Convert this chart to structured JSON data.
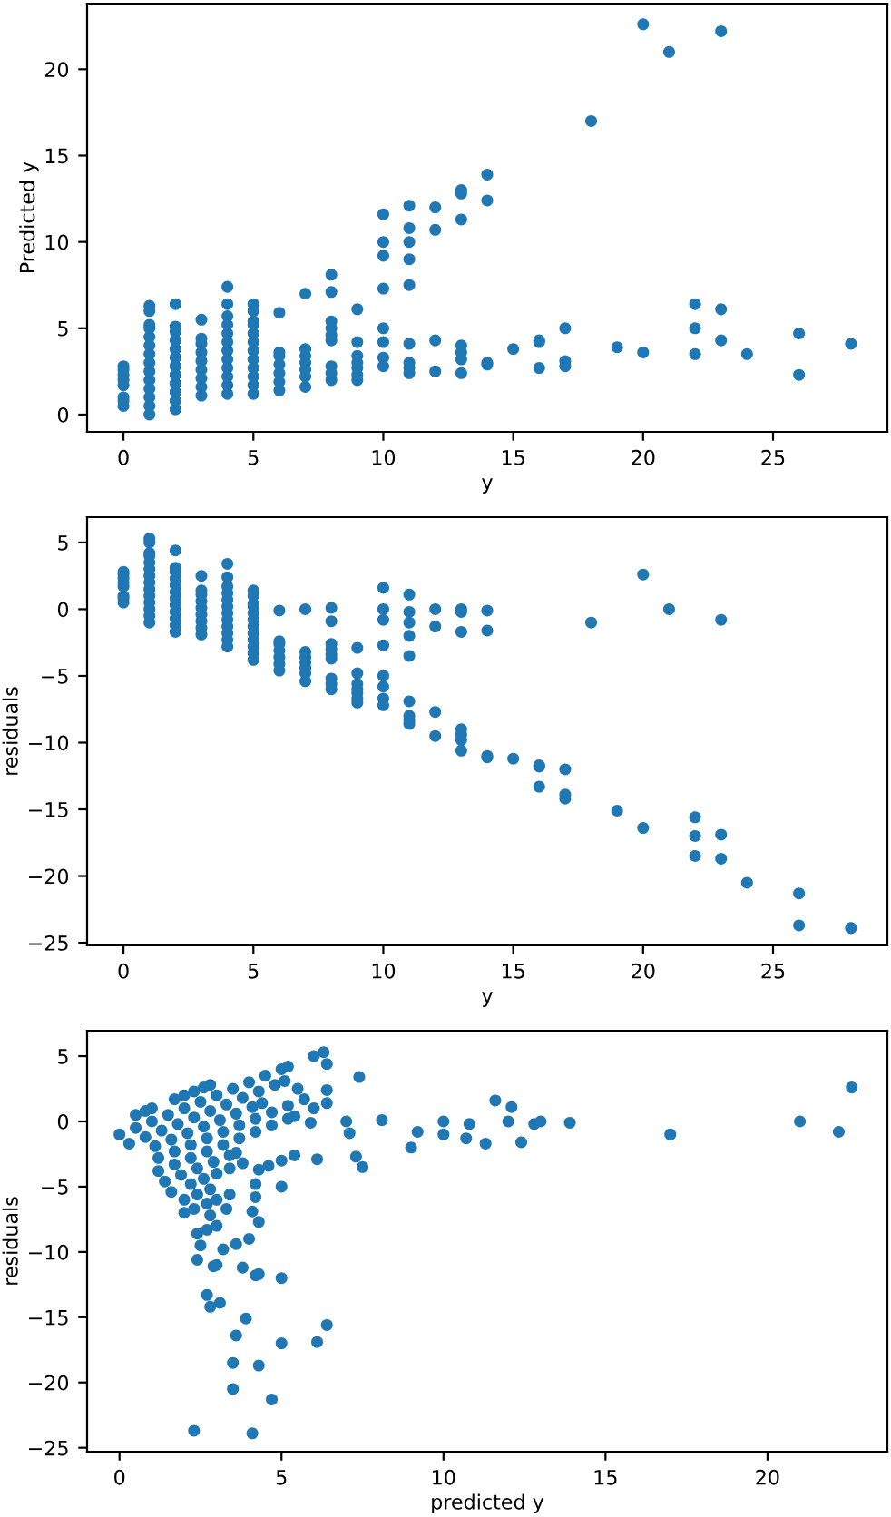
{
  "chart_data": [
    {
      "type": "scatter",
      "xlabel": "y",
      "ylabel": "Predicted y",
      "xlim": [
        -1.4,
        29.4
      ],
      "xticks": [
        0,
        5,
        10,
        15,
        20,
        25
      ],
      "ylim": [
        -1.0,
        23.8
      ],
      "yticks": [
        0,
        5,
        10,
        15,
        20
      ],
      "grid": false,
      "legend": false,
      "marker": "circle",
      "series": [
        {
          "color": "#1f77b4",
          "x": [
            0,
            0,
            0,
            0,
            0,
            0,
            0,
            0,
            1,
            1,
            1,
            1,
            1,
            1,
            1,
            1,
            1,
            1,
            1,
            1,
            1,
            1,
            2,
            2,
            2,
            2,
            2,
            2,
            2,
            2,
            2,
            2,
            2,
            2,
            3,
            3,
            3,
            3,
            3,
            3,
            3,
            3,
            3,
            4,
            4,
            4,
            4,
            4,
            4,
            4,
            4,
            4,
            4,
            4,
            4,
            5,
            5,
            5,
            5,
            5,
            5,
            5,
            5,
            5,
            5,
            5,
            5,
            6,
            6,
            6,
            6,
            6,
            6,
            6,
            7,
            7,
            7,
            7,
            7,
            7,
            7,
            8,
            8,
            8,
            8,
            8,
            8,
            8,
            8,
            8,
            9,
            9,
            9,
            9,
            9,
            9,
            9,
            10,
            10,
            10,
            10,
            10,
            10,
            10,
            10,
            11,
            11,
            11,
            11,
            11,
            11,
            11,
            11,
            11,
            12,
            12,
            12,
            12,
            13,
            13,
            13,
            13,
            13,
            13,
            13,
            14,
            14,
            14,
            14,
            15,
            16,
            16,
            16,
            17,
            17,
            17,
            18,
            19,
            20,
            20,
            21,
            22,
            22,
            22,
            23,
            23,
            23,
            24,
            26,
            26,
            28
          ],
          "values": [
            0.5,
            0.8,
            1.0,
            1.7,
            2.0,
            2.3,
            2.6,
            2.8,
            0.0,
            0.5,
            1.0,
            1.5,
            2.0,
            2.5,
            3.0,
            3.5,
            4.0,
            4.5,
            5.0,
            5.2,
            6.0,
            6.3,
            0.3,
            0.8,
            1.3,
            1.8,
            2.3,
            2.8,
            3.3,
            3.8,
            4.3,
            4.8,
            5.1,
            6.4,
            1.1,
            1.6,
            2.1,
            2.6,
            3.1,
            3.6,
            4.1,
            4.4,
            5.5,
            1.2,
            1.7,
            2.2,
            2.7,
            3.2,
            3.7,
            4.2,
            4.7,
            5.2,
            5.7,
            6.4,
            7.4,
            1.2,
            1.7,
            2.2,
            2.7,
            3.2,
            3.7,
            4.2,
            4.7,
            5.2,
            5.4,
            6.0,
            6.4,
            1.4,
            1.9,
            2.4,
            2.9,
            3.4,
            3.6,
            5.9,
            1.6,
            2.2,
            2.6,
            3.0,
            3.4,
            3.8,
            7.0,
            2.0,
            2.4,
            2.8,
            4.3,
            4.6,
            5.0,
            5.4,
            7.1,
            8.1,
            2.0,
            2.3,
            2.7,
            3.0,
            3.4,
            4.2,
            6.1,
            2.8,
            3.3,
            4.2,
            5.0,
            7.3,
            9.2,
            10.0,
            11.6,
            2.4,
            2.7,
            3.0,
            4.1,
            7.5,
            9.0,
            10.0,
            10.8,
            12.1,
            2.5,
            4.3,
            10.7,
            12.0,
            2.4,
            3.2,
            3.6,
            4.0,
            11.3,
            12.8,
            13.0,
            2.9,
            3.0,
            12.4,
            13.9,
            3.8,
            2.7,
            4.2,
            4.3,
            2.8,
            3.1,
            5.0,
            17.0,
            3.9,
            3.6,
            22.6,
            21.0,
            3.5,
            5.0,
            6.4,
            4.3,
            6.1,
            22.2,
            3.5,
            2.3,
            4.7,
            4.1
          ]
        }
      ]
    },
    {
      "type": "scatter",
      "xlabel": "y",
      "ylabel": "residuals",
      "xlim": [
        -1.4,
        29.4
      ],
      "xticks": [
        0,
        5,
        10,
        15,
        20,
        25
      ],
      "ylim": [
        -25.2,
        6.9
      ],
      "yticks": [
        {
          "value": -25,
          "label": "−25"
        },
        {
          "value": -20,
          "label": "−20"
        },
        {
          "value": -15,
          "label": "−15"
        },
        {
          "value": -10,
          "label": "−10"
        },
        {
          "value": -5,
          "label": "−5"
        },
        0,
        5
      ],
      "grid": false,
      "legend": false,
      "marker": "circle",
      "series": [
        {
          "color": "#1f77b4",
          "x": [
            0,
            0,
            0,
            0,
            0,
            0,
            0,
            0,
            1,
            1,
            1,
            1,
            1,
            1,
            1,
            1,
            1,
            1,
            1,
            1,
            1,
            1,
            2,
            2,
            2,
            2,
            2,
            2,
            2,
            2,
            2,
            2,
            2,
            2,
            3,
            3,
            3,
            3,
            3,
            3,
            3,
            3,
            3,
            4,
            4,
            4,
            4,
            4,
            4,
            4,
            4,
            4,
            4,
            4,
            4,
            5,
            5,
            5,
            5,
            5,
            5,
            5,
            5,
            5,
            5,
            5,
            5,
            6,
            6,
            6,
            6,
            6,
            6,
            6,
            7,
            7,
            7,
            7,
            7,
            7,
            7,
            8,
            8,
            8,
            8,
            8,
            8,
            8,
            8,
            8,
            9,
            9,
            9,
            9,
            9,
            9,
            9,
            10,
            10,
            10,
            10,
            10,
            10,
            10,
            10,
            11,
            11,
            11,
            11,
            11,
            11,
            11,
            11,
            11,
            12,
            12,
            12,
            12,
            13,
            13,
            13,
            13,
            13,
            13,
            13,
            14,
            14,
            14,
            14,
            15,
            16,
            16,
            16,
            17,
            17,
            17,
            18,
            19,
            20,
            20,
            21,
            22,
            22,
            22,
            23,
            23,
            23,
            24,
            26,
            26,
            28
          ],
          "values": [
            0.5,
            0.8,
            1.0,
            1.7,
            2.0,
            2.3,
            2.6,
            2.8,
            -1.0,
            -0.5,
            0.0,
            0.5,
            1.0,
            1.5,
            2.0,
            2.5,
            3.0,
            3.5,
            4.0,
            4.2,
            5.0,
            5.3,
            -1.7,
            -1.2,
            -0.7,
            -0.2,
            0.3,
            0.8,
            1.3,
            1.8,
            2.3,
            2.8,
            3.1,
            4.4,
            -1.9,
            -1.4,
            -0.9,
            -0.4,
            0.1,
            0.6,
            1.1,
            1.4,
            2.5,
            -2.8,
            -2.3,
            -1.8,
            -1.3,
            -0.8,
            -0.3,
            0.2,
            0.7,
            1.2,
            1.7,
            2.4,
            3.4,
            -3.8,
            -3.3,
            -2.8,
            -2.3,
            -1.8,
            -1.3,
            -0.8,
            -0.3,
            0.2,
            0.4,
            1.0,
            1.4,
            -4.6,
            -4.1,
            -3.6,
            -3.1,
            -2.6,
            -2.4,
            -0.1,
            -5.4,
            -4.8,
            -4.4,
            -4.0,
            -3.6,
            -3.2,
            0.0,
            -6.0,
            -5.6,
            -5.2,
            -3.7,
            -3.4,
            -3.0,
            -2.6,
            -0.9,
            0.1,
            -7.0,
            -6.7,
            -6.3,
            -6.0,
            -5.6,
            -4.8,
            -2.9,
            -7.2,
            -6.7,
            -5.8,
            -5.0,
            -2.7,
            -0.8,
            0.0,
            1.6,
            -8.6,
            -8.3,
            -8.0,
            -6.9,
            -3.5,
            -2.0,
            -1.0,
            -0.2,
            1.1,
            -9.5,
            -7.7,
            -1.3,
            0.0,
            -10.6,
            -9.8,
            -9.4,
            -9.0,
            -1.7,
            -0.2,
            0.0,
            -11.1,
            -11.0,
            -1.6,
            -0.1,
            -11.2,
            -13.3,
            -11.8,
            -11.7,
            -14.2,
            -13.9,
            -12.0,
            -1.0,
            -15.1,
            -16.4,
            2.6,
            0.0,
            -18.5,
            -17.0,
            -15.6,
            -18.7,
            -16.9,
            -0.8,
            -20.5,
            -23.7,
            -21.3,
            -23.9
          ]
        }
      ]
    },
    {
      "type": "scatter",
      "xlabel": "predicted y",
      "ylabel": "residuals",
      "xlim": [
        -1.0,
        23.7
      ],
      "xticks": [
        0,
        5,
        10,
        15,
        20
      ],
      "ylim": [
        -25.3,
        6.95
      ],
      "yticks": [
        {
          "value": -25,
          "label": "−25"
        },
        {
          "value": -20,
          "label": "−20"
        },
        {
          "value": -15,
          "label": "−15"
        },
        {
          "value": -10,
          "label": "−10"
        },
        {
          "value": -5,
          "label": "−5"
        },
        0,
        5
      ],
      "grid": false,
      "legend": false,
      "marker": "circle",
      "series": [
        {
          "color": "#1f77b4",
          "x": [
            0.5,
            0.8,
            1.0,
            1.7,
            2.0,
            2.3,
            2.6,
            2.8,
            0.0,
            0.5,
            1.0,
            1.5,
            2.0,
            2.5,
            3.0,
            3.5,
            4.0,
            4.5,
            5.0,
            5.2,
            6.0,
            6.3,
            0.3,
            0.8,
            1.3,
            1.8,
            2.3,
            2.8,
            3.3,
            3.8,
            4.3,
            4.8,
            5.1,
            6.4,
            1.1,
            1.6,
            2.1,
            2.6,
            3.1,
            3.6,
            4.1,
            4.4,
            5.5,
            1.2,
            1.7,
            2.2,
            2.7,
            3.2,
            3.7,
            4.2,
            4.7,
            5.2,
            5.7,
            6.4,
            7.4,
            1.2,
            1.7,
            2.2,
            2.7,
            3.2,
            3.7,
            4.2,
            4.7,
            5.2,
            5.4,
            6.0,
            6.4,
            1.4,
            1.9,
            2.4,
            2.9,
            3.4,
            3.6,
            5.9,
            1.6,
            2.2,
            2.6,
            3.0,
            3.4,
            3.8,
            7.0,
            2.0,
            2.4,
            2.8,
            4.3,
            4.6,
            5.0,
            5.4,
            7.1,
            8.1,
            2.0,
            2.3,
            2.7,
            3.0,
            3.4,
            4.2,
            6.1,
            2.8,
            3.3,
            4.2,
            5.0,
            7.3,
            9.2,
            10.0,
            11.6,
            2.4,
            2.7,
            3.0,
            4.1,
            7.5,
            9.0,
            10.0,
            10.8,
            12.1,
            2.5,
            4.3,
            10.7,
            12.0,
            2.4,
            3.2,
            3.6,
            4.0,
            11.3,
            12.8,
            13.0,
            2.9,
            3.0,
            12.4,
            13.9,
            3.8,
            2.7,
            4.2,
            4.3,
            2.8,
            3.1,
            5.0,
            17.0,
            3.9,
            3.6,
            22.6,
            21.0,
            3.5,
            5.0,
            6.4,
            4.3,
            6.1,
            22.2,
            3.5,
            2.3,
            4.7,
            4.1
          ],
          "values": [
            0.5,
            0.8,
            1.0,
            1.7,
            2.0,
            2.3,
            2.6,
            2.8,
            -1.0,
            -0.5,
            0.0,
            0.5,
            1.0,
            1.5,
            2.0,
            2.5,
            3.0,
            3.5,
            4.0,
            4.2,
            5.0,
            5.3,
            -1.7,
            -1.2,
            -0.7,
            -0.2,
            0.3,
            0.8,
            1.3,
            1.8,
            2.3,
            2.8,
            3.1,
            4.4,
            -1.9,
            -1.4,
            -0.9,
            -0.4,
            0.1,
            0.6,
            1.1,
            1.4,
            2.5,
            -2.8,
            -2.3,
            -1.8,
            -1.3,
            -0.8,
            -0.3,
            0.2,
            0.7,
            1.2,
            1.7,
            2.4,
            3.4,
            -3.8,
            -3.3,
            -2.8,
            -2.3,
            -1.8,
            -1.3,
            -0.8,
            -0.3,
            0.2,
            0.4,
            1.0,
            1.4,
            -4.6,
            -4.1,
            -3.6,
            -3.1,
            -2.6,
            -2.4,
            -0.1,
            -5.4,
            -4.8,
            -4.4,
            -4.0,
            -3.6,
            -3.2,
            0.0,
            -6.0,
            -5.6,
            -5.2,
            -3.7,
            -3.4,
            -3.0,
            -2.6,
            -0.9,
            0.1,
            -7.0,
            -6.7,
            -6.3,
            -6.0,
            -5.6,
            -4.8,
            -2.9,
            -7.2,
            -6.7,
            -5.8,
            -5.0,
            -2.7,
            -0.8,
            0.0,
            1.6,
            -8.6,
            -8.3,
            -8.0,
            -6.9,
            -3.5,
            -2.0,
            -1.0,
            -0.2,
            1.1,
            -9.5,
            -7.7,
            -1.3,
            0.0,
            -10.6,
            -9.8,
            -9.4,
            -9.0,
            -1.7,
            -0.2,
            0.0,
            -11.1,
            -11.0,
            -1.6,
            -0.1,
            -11.2,
            -13.3,
            -11.8,
            -11.7,
            -14.2,
            -13.9,
            -12.0,
            -1.0,
            -15.1,
            -16.4,
            2.6,
            0.0,
            -18.5,
            -17.0,
            -15.6,
            -18.7,
            -16.9,
            -0.8,
            -20.5,
            -23.7,
            -21.3,
            -23.9
          ]
        }
      ]
    }
  ]
}
